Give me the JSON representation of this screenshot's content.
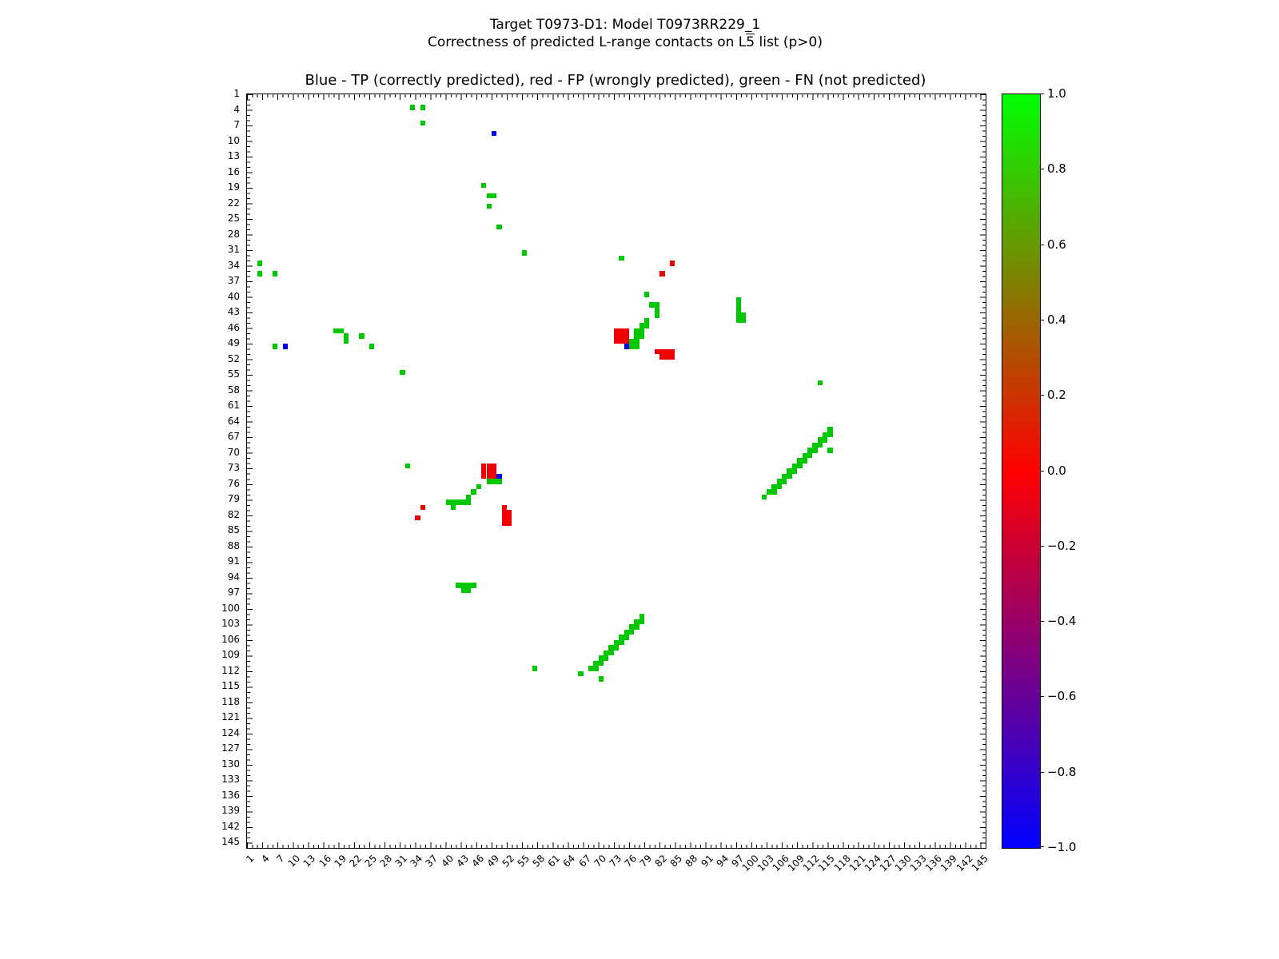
{
  "figure": {
    "suptitle_line1": "Target T0973-D1: Model T0973RR229_1",
    "suptitle_line2_prefix": "Correctness of predicted L-range contacts on L",
    "suptitle_line2_overline": "5",
    "suptitle_line2_suffix": " list (p>0)",
    "axes_title": "Blue - TP (correctly predicted), red - FP (wrongly predicted), green - FN (not predicted)"
  },
  "chart_data": {
    "type": "heatmap",
    "title": "Blue - TP (correctly predicted), red - FP (wrongly predicted), green - FN (not predicted)",
    "x_range": [
      1,
      145
    ],
    "y_range": [
      1,
      145
    ],
    "grid": false,
    "legend": {
      "blue": "TP (correctly predicted)",
      "red": "FP (wrongly predicted)",
      "green": "FN (not predicted)"
    },
    "x_ticks": [
      1,
      4,
      7,
      10,
      13,
      16,
      19,
      22,
      25,
      28,
      31,
      34,
      37,
      40,
      43,
      46,
      49,
      52,
      55,
      58,
      61,
      64,
      67,
      70,
      73,
      76,
      79,
      82,
      85,
      88,
      91,
      94,
      97,
      100,
      103,
      106,
      109,
      112,
      115,
      118,
      121,
      124,
      127,
      130,
      133,
      136,
      139,
      142,
      145
    ],
    "y_ticks": [
      1,
      4,
      7,
      10,
      13,
      16,
      19,
      22,
      25,
      28,
      31,
      34,
      37,
      40,
      43,
      46,
      49,
      52,
      55,
      58,
      61,
      64,
      67,
      70,
      73,
      76,
      79,
      82,
      85,
      88,
      91,
      94,
      97,
      100,
      103,
      106,
      109,
      112,
      115,
      118,
      121,
      124,
      127,
      130,
      133,
      136,
      139,
      142,
      145
    ],
    "colors": {
      "tp_blue": "#0000ee",
      "fp_red": "#ee0000",
      "fn_green": "#00c800"
    },
    "cells": {
      "tp_blue": [
        [
          49,
          8
        ],
        [
          8,
          49
        ],
        [
          75,
          49
        ],
        [
          50,
          74
        ]
      ],
      "fp_red": [
        [
          84,
          33
        ],
        [
          82,
          35
        ],
        [
          73,
          46
        ],
        [
          74,
          46
        ],
        [
          75,
          46
        ],
        [
          73,
          47
        ],
        [
          74,
          47
        ],
        [
          75,
          47
        ],
        [
          73,
          48
        ],
        [
          74,
          48
        ],
        [
          75,
          48
        ],
        [
          81,
          50
        ],
        [
          82,
          50
        ],
        [
          83,
          50
        ],
        [
          84,
          50
        ],
        [
          82,
          51
        ],
        [
          83,
          51
        ],
        [
          84,
          51
        ],
        [
          47,
          72
        ],
        [
          48,
          72
        ],
        [
          49,
          72
        ],
        [
          47,
          73
        ],
        [
          48,
          73
        ],
        [
          49,
          73
        ],
        [
          47,
          74
        ],
        [
          48,
          74
        ],
        [
          49,
          74
        ],
        [
          35,
          80
        ],
        [
          34,
          82
        ],
        [
          51,
          80
        ],
        [
          51,
          81
        ],
        [
          52,
          81
        ],
        [
          51,
          82
        ],
        [
          52,
          82
        ],
        [
          51,
          83
        ],
        [
          52,
          83
        ]
      ],
      "fn_green": [
        [
          33,
          3
        ],
        [
          35,
          3
        ],
        [
          35,
          6
        ],
        [
          47,
          18
        ],
        [
          48,
          20
        ],
        [
          49,
          20
        ],
        [
          48,
          22
        ],
        [
          50,
          26
        ],
        [
          55,
          31
        ],
        [
          74,
          32
        ],
        [
          3,
          33
        ],
        [
          3,
          35
        ],
        [
          6,
          35
        ],
        [
          79,
          39
        ],
        [
          80,
          41
        ],
        [
          81,
          41
        ],
        [
          81,
          42
        ],
        [
          81,
          43
        ],
        [
          97,
          40
        ],
        [
          97,
          41
        ],
        [
          97,
          42
        ],
        [
          97,
          43
        ],
        [
          97,
          44
        ],
        [
          98,
          43
        ],
        [
          98,
          44
        ],
        [
          79,
          44
        ],
        [
          78,
          45
        ],
        [
          79,
          45
        ],
        [
          77,
          46
        ],
        [
          78,
          46
        ],
        [
          77,
          47
        ],
        [
          78,
          47
        ],
        [
          76,
          48
        ],
        [
          77,
          48
        ],
        [
          76,
          49
        ],
        [
          77,
          49
        ],
        [
          18,
          46
        ],
        [
          19,
          46
        ],
        [
          20,
          47
        ],
        [
          20,
          48
        ],
        [
          23,
          47
        ],
        [
          25,
          49
        ],
        [
          6,
          49
        ],
        [
          31,
          54
        ],
        [
          113,
          56
        ],
        [
          115,
          65
        ],
        [
          114,
          66
        ],
        [
          115,
          66
        ],
        [
          113,
          67
        ],
        [
          114,
          67
        ],
        [
          112,
          68
        ],
        [
          113,
          68
        ],
        [
          111,
          69
        ],
        [
          112,
          69
        ],
        [
          115,
          69
        ],
        [
          110,
          70
        ],
        [
          111,
          70
        ],
        [
          109,
          71
        ],
        [
          110,
          71
        ],
        [
          108,
          72
        ],
        [
          109,
          72
        ],
        [
          107,
          73
        ],
        [
          108,
          73
        ],
        [
          106,
          74
        ],
        [
          107,
          74
        ],
        [
          105,
          75
        ],
        [
          106,
          75
        ],
        [
          104,
          76
        ],
        [
          105,
          76
        ],
        [
          103,
          77
        ],
        [
          104,
          77
        ],
        [
          102,
          78
        ],
        [
          32,
          72
        ],
        [
          48,
          75
        ],
        [
          49,
          75
        ],
        [
          50,
          75
        ],
        [
          46,
          76
        ],
        [
          45,
          77
        ],
        [
          44,
          78
        ],
        [
          40,
          79
        ],
        [
          41,
          79
        ],
        [
          42,
          79
        ],
        [
          43,
          79
        ],
        [
          44,
          79
        ],
        [
          41,
          80
        ],
        [
          42,
          95
        ],
        [
          43,
          95
        ],
        [
          44,
          95
        ],
        [
          45,
          95
        ],
        [
          43,
          96
        ],
        [
          44,
          96
        ],
        [
          78,
          101
        ],
        [
          77,
          102
        ],
        [
          78,
          102
        ],
        [
          76,
          103
        ],
        [
          77,
          103
        ],
        [
          75,
          104
        ],
        [
          76,
          104
        ],
        [
          74,
          105
        ],
        [
          75,
          105
        ],
        [
          73,
          106
        ],
        [
          74,
          106
        ],
        [
          72,
          107
        ],
        [
          73,
          107
        ],
        [
          71,
          108
        ],
        [
          72,
          108
        ],
        [
          70,
          109
        ],
        [
          71,
          109
        ],
        [
          69,
          110
        ],
        [
          70,
          110
        ],
        [
          68,
          111
        ],
        [
          69,
          111
        ],
        [
          57,
          111
        ],
        [
          66,
          112
        ],
        [
          70,
          113
        ]
      ]
    },
    "colorbar": {
      "min": -1.0,
      "max": 1.0,
      "tick_labels": [
        "1.0",
        "0.8",
        "0.6",
        "0.4",
        "0.2",
        "0.0",
        "−0.2",
        "−0.4",
        "−0.6",
        "−0.8",
        "−1.0"
      ],
      "stops": [
        {
          "value": -1.0,
          "color": "#0000ff"
        },
        {
          "value": -0.75,
          "color": "#4000bf"
        },
        {
          "value": -0.5,
          "color": "#800080"
        },
        {
          "value": -0.25,
          "color": "#bf0040"
        },
        {
          "value": 0.0,
          "color": "#ff0000"
        },
        {
          "value": 0.25,
          "color": "#bf4000"
        },
        {
          "value": 0.5,
          "color": "#808000"
        },
        {
          "value": 0.75,
          "color": "#40bf00"
        },
        {
          "value": 1.0,
          "color": "#00ff00"
        }
      ]
    }
  }
}
